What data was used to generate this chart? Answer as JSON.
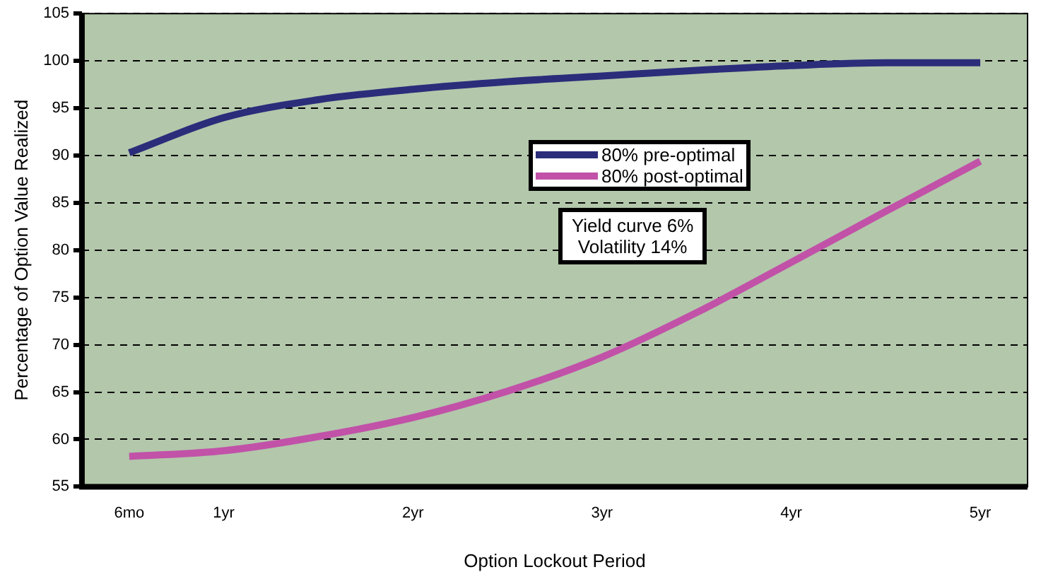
{
  "chart_data": {
    "type": "line",
    "xlabel": "Option Lockout Period",
    "ylabel": "Percentage of Option Value Realized",
    "categories": [
      "6mo",
      "1yr",
      null,
      "2yr",
      null,
      "3yr",
      null,
      "4yr",
      null,
      "5yr"
    ],
    "series": [
      {
        "name": "80% pre-optimal",
        "color": "#2b2d7a",
        "values": [
          90.3,
          94.0,
          95.9,
          97.0,
          97.8,
          98.4,
          99.0,
          99.5,
          99.8,
          99.8
        ]
      },
      {
        "name": "80% post-optimal",
        "color": "#c152a8",
        "values": [
          58.2,
          58.8,
          60.3,
          62.3,
          65.1,
          68.7,
          73.4,
          78.7,
          84.1,
          89.4
        ]
      }
    ],
    "ylim": [
      55,
      105
    ],
    "yticks": [
      55,
      60,
      65,
      70,
      75,
      80,
      85,
      90,
      95,
      100,
      105
    ],
    "grid": "y",
    "line_style": "solid",
    "marker": "none",
    "legend": "center",
    "annotations": [
      "Yield curve 6%\nVolatility 14%"
    ]
  }
}
